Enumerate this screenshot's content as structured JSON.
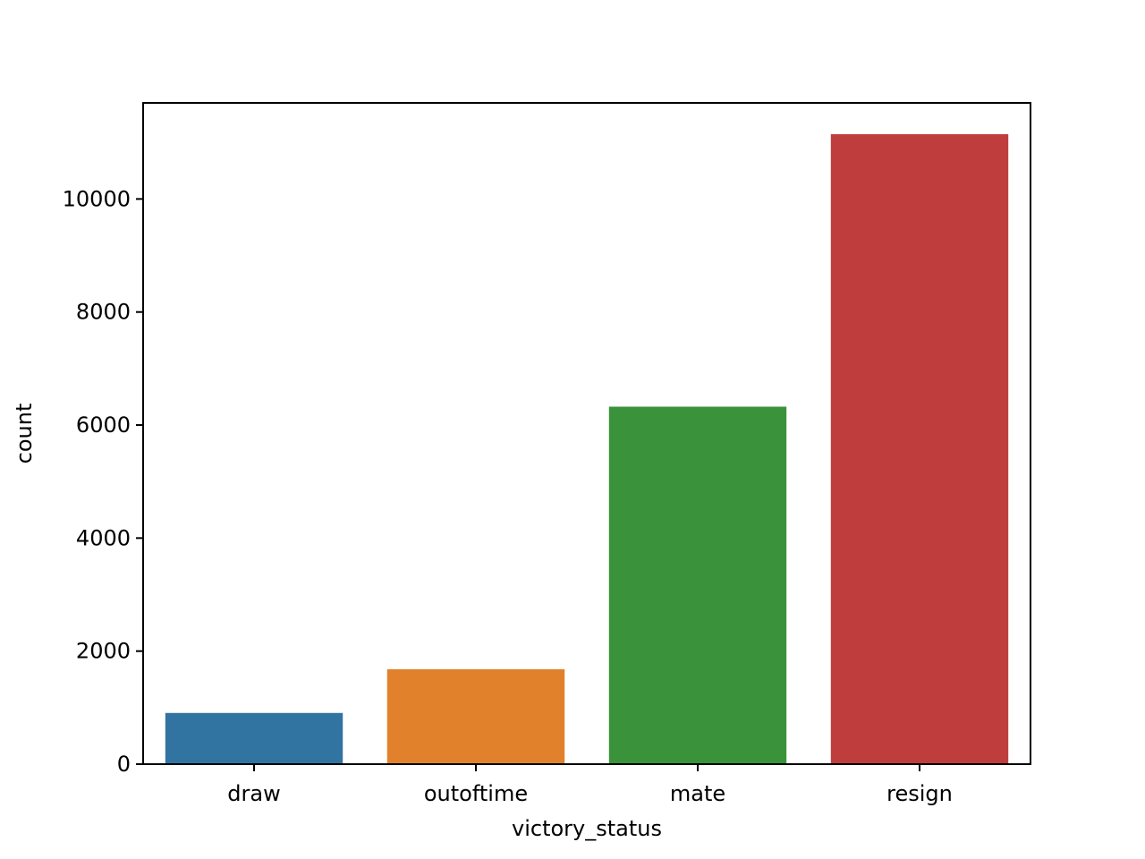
{
  "chart_data": {
    "type": "bar",
    "title": "",
    "xlabel": "victory_status",
    "ylabel": "count",
    "categories": [
      "draw",
      "outoftime",
      "mate",
      "resign"
    ],
    "values": [
      906,
      1680,
      6325,
      11147
    ],
    "colors": [
      "#3274a1",
      "#e1812c",
      "#3a923a",
      "#c03d3e"
    ],
    "ylim": [
      0,
      11700
    ],
    "yticks": [
      0,
      2000,
      4000,
      6000,
      8000,
      10000
    ],
    "grid": false,
    "legend": "none"
  }
}
